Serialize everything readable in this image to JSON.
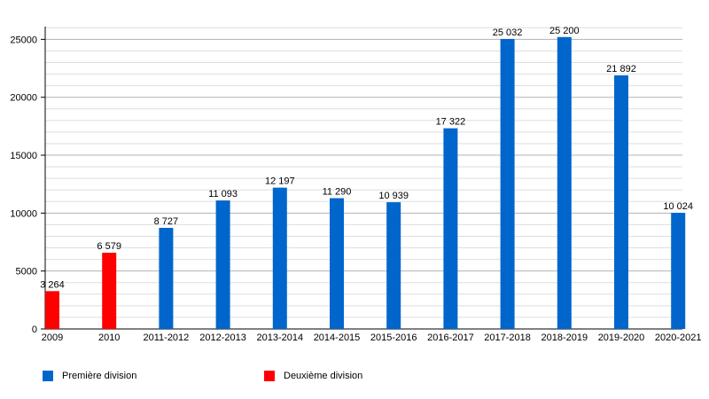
{
  "chart_data": {
    "type": "bar",
    "categories": [
      "2009",
      "2010",
      "2011-2012",
      "2012-2013",
      "2013-2014",
      "2014-2015",
      "2015-2016",
      "2016-2017",
      "2017-2018",
      "2018-2019",
      "2019-2020",
      "2020-2021"
    ],
    "series": [
      {
        "name": "Première division",
        "color": "#0066cc",
        "values": [
          null,
          null,
          8727,
          11093,
          12197,
          11290,
          10939,
          17322,
          25032,
          25200,
          21892,
          10024
        ],
        "labels": [
          "",
          "",
          "8 727",
          "11 093",
          "12 197",
          "11 290",
          "10 939",
          "17 322",
          "25 032",
          "25 200",
          "21 892",
          "10 024"
        ]
      },
      {
        "name": "Deuxième division",
        "color": "#ff0000",
        "values": [
          3264,
          6579,
          null,
          null,
          null,
          null,
          null,
          null,
          null,
          null,
          null,
          null
        ],
        "labels": [
          "3 264",
          "6 579",
          "",
          "",
          "",
          "",
          "",
          "",
          "",
          "",
          "",
          ""
        ]
      }
    ],
    "yticks": [
      "0",
      "5000",
      "10000",
      "15000",
      "20000",
      "25000"
    ],
    "ylim": [
      0,
      27500
    ],
    "grid": true,
    "legend_position": "bottom",
    "title": "",
    "xlabel": "",
    "ylabel": ""
  }
}
